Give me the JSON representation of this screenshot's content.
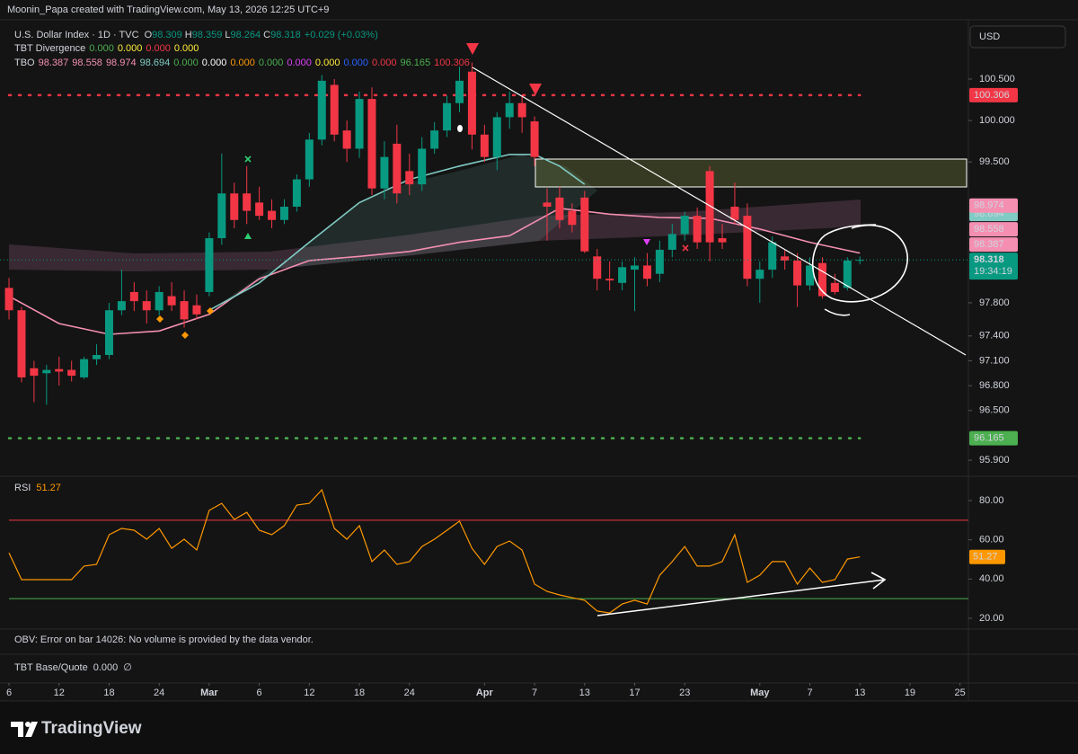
{
  "header": {
    "attribution": "Moonin_Papa created with TradingView.com, May 13, 2026 12:25 UTC+9",
    "currency": "USD"
  },
  "chart_data": [
    {
      "type": "candlestick",
      "title": "U.S. Dollar Index · 1D · TVC",
      "legend_keys": {
        "open": "O",
        "high": "H",
        "low": "L",
        "close": "C"
      },
      "change": "+0.029 (+0.03%)",
      "countdown": "19:34:19",
      "open": [
        97.98,
        97.71,
        97.01,
        96.95,
        97.0,
        96.99,
        96.9,
        97.12,
        97.17,
        97.71,
        97.93,
        97.82,
        97.71,
        97.88,
        97.82,
        97.77,
        97.93,
        98.58,
        99.12,
        99.12,
        99.01,
        98.91,
        98.8,
        98.96,
        99.29,
        99.77,
        100.43,
        99.88,
        99.66,
        100.26,
        99.18,
        99.72,
        99.39,
        99.23,
        99.66,
        99.88,
        100.21,
        100.59,
        99.83,
        99.56,
        100.04,
        100.21,
        99.99,
        99.01,
        99.07,
        98.91,
        99.07,
        98.36,
        98.09,
        98.04,
        98.2,
        98.25,
        98.15,
        98.44,
        98.63,
        98.85,
        99.39,
        98.58,
        98.96,
        98.85,
        98.09,
        98.2,
        98.36,
        98.31,
        98.01,
        98.28,
        98.04,
        97.98,
        98.309
      ],
      "high": [
        98.1,
        97.75,
        97.1,
        97.05,
        97.15,
        97.1,
        97.15,
        97.3,
        97.8,
        98.2,
        98.05,
        97.95,
        98.0,
        98.05,
        97.95,
        97.9,
        98.65,
        99.6,
        99.25,
        99.45,
        99.2,
        99.05,
        99.05,
        99.35,
        99.85,
        100.55,
        100.5,
        100.0,
        100.35,
        100.4,
        99.75,
        99.95,
        99.6,
        99.8,
        99.98,
        100.3,
        100.65,
        100.7,
        99.95,
        100.1,
        100.35,
        100.3,
        100.05,
        99.18,
        99.2,
        99.0,
        99.15,
        98.45,
        98.3,
        98.3,
        98.35,
        98.4,
        98.55,
        98.75,
        98.9,
        98.95,
        99.45,
        98.75,
        99.25,
        99.0,
        98.3,
        98.6,
        98.45,
        98.4,
        98.35,
        98.35,
        98.15,
        98.35,
        98.359
      ],
      "low": [
        97.6,
        96.84,
        96.6,
        96.57,
        96.8,
        96.85,
        96.88,
        97.05,
        97.12,
        97.65,
        97.7,
        97.55,
        97.65,
        97.7,
        97.5,
        97.6,
        97.88,
        98.5,
        98.7,
        98.75,
        98.8,
        98.7,
        98.75,
        98.9,
        99.2,
        99.7,
        99.75,
        99.5,
        99.55,
        99.1,
        99.05,
        99.0,
        99.1,
        99.15,
        99.6,
        99.8,
        100.1,
        99.65,
        99.5,
        99.4,
        99.9,
        99.85,
        99.45,
        98.55,
        98.7,
        98.65,
        98.4,
        97.95,
        97.95,
        97.95,
        97.7,
        98.0,
        98.05,
        98.35,
        98.55,
        98.45,
        98.3,
        98.45,
        98.75,
        98.0,
        97.8,
        98.1,
        98.2,
        97.75,
        97.95,
        97.85,
        97.9,
        97.95,
        98.264
      ],
      "close": [
        97.71,
        96.9,
        96.92,
        96.99,
        96.97,
        96.92,
        97.12,
        97.17,
        97.71,
        97.82,
        97.82,
        97.71,
        97.93,
        97.77,
        97.6,
        97.66,
        98.58,
        99.12,
        98.8,
        98.91,
        98.85,
        98.8,
        98.96,
        99.29,
        99.77,
        100.48,
        99.83,
        99.66,
        100.26,
        99.18,
        99.56,
        99.12,
        99.23,
        99.66,
        99.88,
        100.21,
        100.48,
        99.83,
        99.56,
        100.04,
        100.21,
        100.04,
        99.56,
        98.96,
        98.8,
        98.74,
        98.42,
        98.09,
        98.07,
        98.23,
        98.25,
        98.09,
        98.44,
        98.63,
        98.85,
        98.53,
        98.53,
        98.53,
        98.8,
        98.09,
        98.2,
        98.53,
        98.31,
        98.01,
        98.25,
        97.88,
        97.93,
        98.31,
        98.318
      ],
      "up_color": "#089981",
      "down_color": "#f23645",
      "xlim": [
        -0.72,
        76.67
      ],
      "xticks": [
        {
          "value": 0,
          "label": "6"
        },
        {
          "value": 4,
          "label": "12"
        },
        {
          "value": 8,
          "label": "18"
        },
        {
          "value": 12,
          "label": "24"
        },
        {
          "value": 16,
          "label": "Mar"
        },
        {
          "value": 20,
          "label": "6"
        },
        {
          "value": 24,
          "label": "12"
        },
        {
          "value": 28,
          "label": "18"
        },
        {
          "value": 32,
          "label": "24"
        },
        {
          "value": 38,
          "label": "Apr"
        },
        {
          "value": 42,
          "label": "7"
        },
        {
          "value": 46,
          "label": "13"
        },
        {
          "value": 50,
          "label": "17"
        },
        {
          "value": 54,
          "label": "23"
        },
        {
          "value": 60,
          "label": "May"
        },
        {
          "value": 64,
          "label": "7"
        },
        {
          "value": 68,
          "label": "13"
        },
        {
          "value": 72,
          "label": "19"
        },
        {
          "value": 76,
          "label": "25"
        }
      ],
      "ylim": [
        95.706,
        101.216
      ],
      "yticks": [
        {
          "value": 100.5,
          "label": "100.500"
        },
        {
          "value": 100,
          "label": "100.000"
        },
        {
          "value": 99.5,
          "label": "99.500"
        },
        {
          "value": 97.8,
          "label": "97.800"
        },
        {
          "value": 97.4,
          "label": "97.400"
        },
        {
          "value": 97.1,
          "label": "97.100"
        },
        {
          "value": 96.8,
          "label": "96.800"
        },
        {
          "value": 96.5,
          "label": "96.500"
        },
        {
          "value": 95.9,
          "label": "95.900"
        }
      ],
      "grid": false,
      "divergence": {
        "name": "TBT Divergence",
        "items": [
          {
            "label": "0.000",
            "color": "#4caf50"
          },
          {
            "label": "0.000",
            "color": "#ffeb3b"
          },
          {
            "label": "0.000",
            "color": "#f23645"
          },
          {
            "label": "0.000",
            "color": "#ffeb3b"
          }
        ]
      },
      "tbo": {
        "name": "TBO",
        "items": [
          {
            "value": 98.387,
            "label": "98.387",
            "color": "#f48fb1",
            "tag": true
          },
          {
            "value": 98.558,
            "label": "98.558",
            "color": "#f48fb1",
            "tag": true
          },
          {
            "value": 98.974,
            "label": "98.974",
            "color": "#f48fb1",
            "tag": true
          },
          {
            "value": 98.694,
            "label": "98.694",
            "color": "#80cbc4",
            "tag": true
          },
          {
            "value": 0,
            "label": "0.000",
            "color": "#4caf50"
          },
          {
            "value": 0,
            "label": "0.000",
            "color": "#ffffff"
          },
          {
            "value": 0,
            "label": "0.000",
            "color": "#ff9800"
          },
          {
            "value": 0,
            "label": "0.000",
            "color": "#4caf50"
          },
          {
            "value": 0,
            "label": "0.000",
            "color": "#e040fb"
          },
          {
            "value": 0,
            "label": "0.000",
            "color": "#ffeb3b"
          },
          {
            "value": 0,
            "label": "0.000",
            "color": "#2962ff"
          },
          {
            "value": 0,
            "label": "0.000",
            "color": "#f23645"
          },
          {
            "value": 96.165,
            "label": "96.165",
            "color": "#4caf50",
            "tag": true,
            "style": "dotted"
          },
          {
            "value": 100.306,
            "label": "100.306",
            "color": "#f23645",
            "tag": true,
            "style": "dotted"
          }
        ]
      },
      "overlays": [
        {
          "color": "#f48fb1",
          "x": [
            0,
            4,
            8,
            12,
            16,
            20,
            24,
            28,
            32,
            36,
            40,
            44,
            48,
            52,
            56,
            60,
            64,
            68
          ],
          "values": [
            97.88,
            97.55,
            97.42,
            97.46,
            97.66,
            98.09,
            98.31,
            98.36,
            98.42,
            98.53,
            98.61,
            98.94,
            98.87,
            98.83,
            98.82,
            98.69,
            98.53,
            98.4
          ]
        },
        {
          "color": "#80cbc4",
          "x": [
            16,
            20,
            24,
            28,
            32,
            36,
            40,
            42,
            44,
            46
          ],
          "values": [
            97.71,
            98.04,
            98.53,
            99.01,
            99.29,
            99.45,
            99.59,
            99.59,
            99.45,
            99.23
          ]
        }
      ]
    },
    {
      "type": "line",
      "title": "RSI",
      "color": "#ff9800",
      "values": [
        53.4,
        39.7,
        39.7,
        39.7,
        39.7,
        39.7,
        46.6,
        47.5,
        62.6,
        65.8,
        64.9,
        60.3,
        65.8,
        55.7,
        60.3,
        54.8,
        75.0,
        78.6,
        70.4,
        74.0,
        64.9,
        62.6,
        67.2,
        77.7,
        78.6,
        85.5,
        65.8,
        60.3,
        67.2,
        48.9,
        54.8,
        47.5,
        48.9,
        56.6,
        60.3,
        64.9,
        69.5,
        55.7,
        47.5,
        56.6,
        59.4,
        54.8,
        37.4,
        33.7,
        31.9,
        30.5,
        29.2,
        23.7,
        22.7,
        27.3,
        29.2,
        27.3,
        42.0,
        48.9,
        56.6,
        46.6,
        46.6,
        48.9,
        62.6,
        38.3,
        42.0,
        48.9,
        48.9,
        37.4,
        45.6,
        38.3,
        39.7,
        50.2,
        51.27
      ],
      "xlim": [
        -0.72,
        76.67
      ],
      "ylim": [
        14.5,
        91.45
      ],
      "yticks": [
        {
          "value": 80,
          "label": "80.00"
        },
        {
          "value": 60,
          "label": "60.00"
        },
        {
          "value": 40,
          "label": "40.00"
        },
        {
          "value": 20,
          "label": "20.00"
        }
      ],
      "upper_band": 70,
      "upper_band_color": "#f23645",
      "lower_band": 30,
      "lower_band_color": "#4caf50"
    }
  ],
  "panes": {
    "obv": "OBV: Error on bar 14026: No volume is provided by the data vendor.",
    "base_quote": {
      "name": "TBT Base/Quote",
      "value": "0.000",
      "symbol": "∅"
    }
  },
  "footer": {
    "brand": "TradingView"
  }
}
